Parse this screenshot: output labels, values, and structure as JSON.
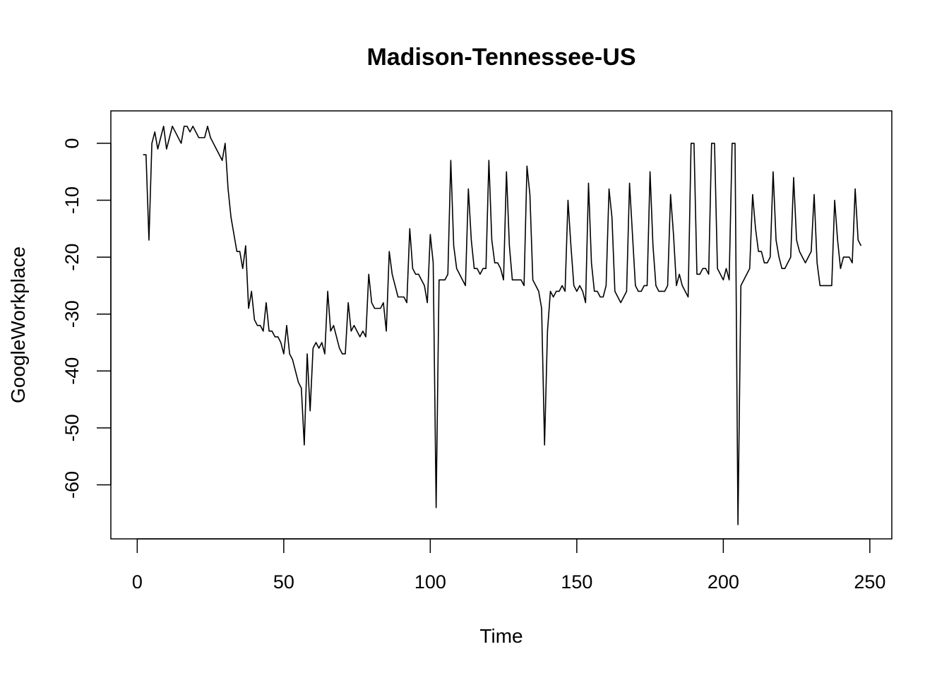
{
  "chart_data": {
    "type": "line",
    "title": "Madison-Tennessee-US",
    "xlabel": "Time",
    "ylabel": "GoogleWorkplace",
    "xlim": [
      -9,
      257.5
    ],
    "ylim": [
      -69.5,
      5.7
    ],
    "xticks": [
      0,
      50,
      100,
      150,
      200,
      250
    ],
    "yticks": [
      0,
      -10,
      -20,
      -30,
      -40,
      -50,
      -60
    ],
    "xtick_labels": [
      "0",
      "50",
      "100",
      "150",
      "200",
      "250"
    ],
    "ytick_labels": [
      "0",
      "-10",
      "-20",
      "-30",
      "-40",
      "-50",
      "-60"
    ],
    "grid": false,
    "series": [
      {
        "name": "GoogleWorkplace",
        "x_start": 2,
        "values": [
          -2,
          -2,
          -17,
          0,
          2,
          -1,
          1,
          3,
          -1,
          1,
          3,
          2,
          1,
          0,
          3,
          3,
          2,
          3,
          2,
          1,
          1,
          1,
          3,
          1,
          0,
          -1,
          -2,
          -3,
          0,
          -8,
          -13,
          -16,
          -19,
          -19,
          -22,
          -18,
          -29,
          -26,
          -31,
          -32,
          -32,
          -33,
          -28,
          -33,
          -33,
          -34,
          -34,
          -35,
          -37,
          -32,
          -37,
          -38,
          -40,
          -42,
          -43,
          -53,
          -37,
          -47,
          -36,
          -35,
          -36,
          -35,
          -37,
          -26,
          -33,
          -32,
          -34,
          -36,
          -37,
          -37,
          -28,
          -33,
          -32,
          -33,
          -34,
          -33,
          -34,
          -23,
          -28,
          -29,
          -29,
          -29,
          -28,
          -33,
          -19,
          -23,
          -25,
          -27,
          -27,
          -27,
          -28,
          -15,
          -22,
          -23,
          -23,
          -24,
          -25,
          -28,
          -16,
          -21,
          -64,
          -24,
          -24,
          -24,
          -23,
          -3,
          -18,
          -22,
          -23,
          -24,
          -25,
          -8,
          -17,
          -22,
          -22,
          -23,
          -22,
          -22,
          -3,
          -17,
          -21,
          -21,
          -22,
          -24,
          -5,
          -18,
          -24,
          -24,
          -24,
          -24,
          -25,
          -4,
          -9,
          -24,
          -25,
          -26,
          -29,
          -53,
          -33,
          -26,
          -27,
          -26,
          -26,
          -25,
          -26,
          -10,
          -18,
          -25,
          -26,
          -25,
          -26,
          -28,
          -7,
          -21,
          -26,
          -26,
          -27,
          -27,
          -25,
          -8,
          -13,
          -26,
          -27,
          -28,
          -27,
          -26,
          -7,
          -16,
          -25,
          -26,
          -26,
          -25,
          -25,
          -5,
          -18,
          -25,
          -26,
          -26,
          -26,
          -25,
          -9,
          -16,
          -25,
          -23,
          -25,
          -26,
          -27,
          0,
          0,
          -23,
          -23,
          -22,
          -22,
          -23,
          0,
          0,
          -22,
          -23,
          -24,
          -22,
          -24,
          0,
          0,
          -67,
          -25,
          -24,
          -23,
          -22,
          -9,
          -15,
          -19,
          -19,
          -21,
          -21,
          -20,
          -5,
          -17,
          -20,
          -22,
          -22,
          -21,
          -20,
          -6,
          -17,
          -19,
          -20,
          -21,
          -20,
          -19,
          -9,
          -21,
          -25,
          -25,
          -25,
          -25,
          -25,
          -10,
          -17,
          -22,
          -20,
          -20,
          -20,
          -21,
          -8,
          -17,
          -18
        ]
      }
    ]
  }
}
